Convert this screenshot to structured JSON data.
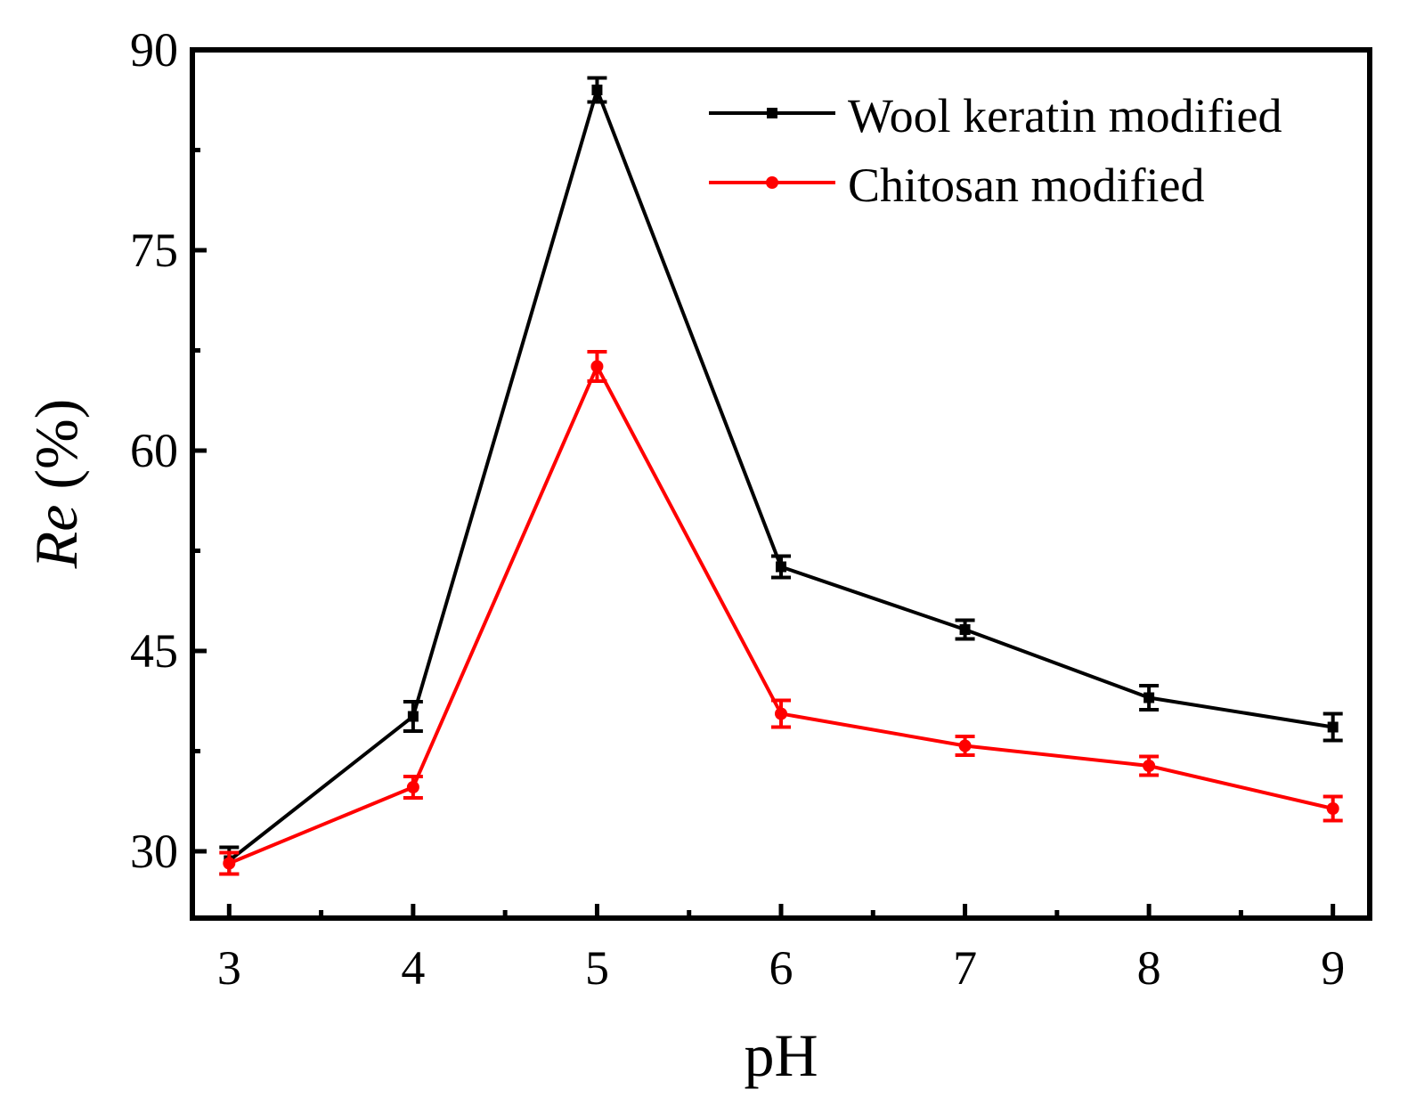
{
  "chart_data": {
    "type": "line",
    "title": "",
    "xlabel": "pH",
    "ylabel_italic": "Re",
    "ylabel_unit": " (%)",
    "x": [
      3,
      4,
      5,
      6,
      7,
      8,
      9
    ],
    "xlim": [
      2.8,
      9.2
    ],
    "ylim": [
      25,
      90
    ],
    "x_ticks": [
      "3",
      "4",
      "5",
      "6",
      "7",
      "8",
      "9"
    ],
    "y_ticks": [
      "30",
      "45",
      "60",
      "75",
      "90"
    ],
    "y_tick_values": [
      30,
      45,
      60,
      75,
      90
    ],
    "y_minor_tick_values": [
      37.5,
      52.5,
      67.5,
      82.5
    ],
    "x_minor_tick_values": [
      3.5,
      4.5,
      5.5,
      6.5,
      7.5,
      8.5
    ],
    "legend_position": "top-right",
    "grid": false,
    "series": [
      {
        "name": "Wool keratin modified",
        "color": "#000000",
        "marker": "square",
        "values": [
          29.3,
          40.1,
          87.0,
          51.3,
          46.6,
          41.5,
          39.3
        ],
        "errors": [
          1.0,
          1.1,
          0.9,
          0.8,
          0.7,
          0.9,
          1.0
        ]
      },
      {
        "name": "Chitosan modified",
        "color": "#ff0000",
        "marker": "circle",
        "values": [
          29.1,
          34.8,
          66.3,
          40.3,
          37.9,
          36.4,
          33.2
        ],
        "errors": [
          0.8,
          0.8,
          1.1,
          1.0,
          0.7,
          0.7,
          0.9
        ]
      }
    ]
  }
}
